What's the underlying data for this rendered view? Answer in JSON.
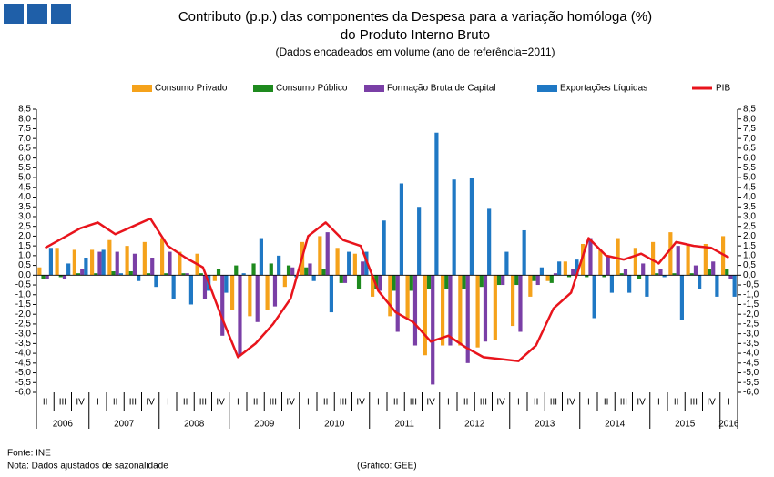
{
  "chart_data": {
    "type": "bar_line",
    "title": "Contributo (p.p.) das componentes da Despesa para a variação homóloga (%)",
    "title_line2": "do Produto Interno Bruto",
    "subtitle": "(Dados encadeados em volume (ano de referência=2011)",
    "source": "Fonte:  INE",
    "note": "Nota:  Dados ajustados de sazonalidade",
    "credit": "(Gráfico:  GEE)",
    "groups": [
      {
        "year": "2006",
        "quarters": [
          "II",
          "III",
          "IV"
        ]
      },
      {
        "year": "2007",
        "quarters": [
          "I",
          "II",
          "III",
          "IV"
        ]
      },
      {
        "year": "2008",
        "quarters": [
          "I",
          "II",
          "III",
          "IV"
        ]
      },
      {
        "year": "2009",
        "quarters": [
          "I",
          "II",
          "III",
          "IV"
        ]
      },
      {
        "year": "2010",
        "quarters": [
          "I",
          "II",
          "III",
          "IV"
        ]
      },
      {
        "year": "2011",
        "quarters": [
          "I",
          "II",
          "III",
          "IV"
        ]
      },
      {
        "year": "2012",
        "quarters": [
          "I",
          "II",
          "III",
          "IV"
        ]
      },
      {
        "year": "2013",
        "quarters": [
          "I",
          "II",
          "III",
          "IV"
        ]
      },
      {
        "year": "2014",
        "quarters": [
          "I",
          "II",
          "III",
          "IV"
        ]
      },
      {
        "year": "2015",
        "quarters": [
          "I",
          "II",
          "III",
          "IV"
        ]
      },
      {
        "year": "2016",
        "quarters": [
          "I"
        ]
      }
    ],
    "series": [
      {
        "name": "Consumo Privado",
        "color": "#f5a21b",
        "kind": "bar",
        "values": [
          0.4,
          1.4,
          1.3,
          1.3,
          1.8,
          1.5,
          1.7,
          1.9,
          1.2,
          1.1,
          -0.3,
          -1.8,
          -2.1,
          -1.8,
          -0.6,
          1.7,
          2.0,
          1.4,
          1.1,
          -1.1,
          -2.1,
          -2.2,
          -4.1,
          -3.6,
          -3.6,
          -3.7,
          -3.3,
          -2.6,
          -1.1,
          -0.3,
          0.7,
          1.6,
          1.3,
          1.9,
          1.4,
          1.7,
          2.2,
          1.6,
          1.6,
          2.0
        ]
      },
      {
        "name": "Consumo Público",
        "color": "#1e8a1e",
        "kind": "bar",
        "values": [
          -0.2,
          -0.1,
          0.1,
          0.1,
          0.2,
          0.2,
          0.1,
          0.1,
          0.1,
          0.1,
          0.3,
          0.5,
          0.6,
          0.6,
          0.5,
          0.4,
          0.3,
          -0.4,
          -0.7,
          -0.7,
          -0.8,
          -0.8,
          -0.7,
          -0.7,
          -0.7,
          -0.6,
          -0.5,
          -0.5,
          -0.3,
          -0.4,
          -0.1,
          -0.1,
          -0.1,
          0.1,
          -0.2,
          0.1,
          0.1,
          0.1,
          0.3,
          0.3
        ]
      },
      {
        "name": "Formação Bruta de Capital",
        "color": "#7a3fa6",
        "kind": "bar",
        "values": [
          -0.2,
          -0.2,
          0.3,
          1.2,
          1.2,
          1.1,
          0.9,
          1.2,
          0.1,
          -1.2,
          -3.1,
          -4.1,
          -2.4,
          -1.6,
          0.4,
          0.6,
          2.2,
          -0.4,
          0.7,
          -0.8,
          -2.9,
          -3.6,
          -5.6,
          -3.6,
          -4.5,
          -3.4,
          -0.5,
          -2.9,
          -0.5,
          0.1,
          0.3,
          1.9,
          1.0,
          0.3,
          0.6,
          0.3,
          1.5,
          0.5,
          0.7,
          -0.2
        ]
      },
      {
        "name": "Exportações Líquidas",
        "color": "#1f78c4",
        "kind": "bar",
        "values": [
          1.4,
          0.6,
          0.9,
          1.3,
          0.1,
          -0.3,
          -0.6,
          -1.2,
          -1.5,
          -0.8,
          -0.9,
          0.1,
          1.9,
          1.0,
          -0.1,
          -0.3,
          -1.9,
          1.2,
          1.2,
          2.8,
          4.7,
          3.5,
          7.3,
          4.9,
          5.0,
          3.4,
          1.2,
          2.3,
          0.4,
          0.7,
          0.8,
          -2.2,
          -0.9,
          -0.9,
          -1.1,
          -0.1,
          -2.3,
          -0.7,
          -1.1,
          -1.1
        ]
      },
      {
        "name": "PIB",
        "color": "#e8141c",
        "kind": "line",
        "values": [
          1.4,
          1.9,
          2.4,
          2.7,
          2.1,
          2.5,
          2.9,
          1.5,
          0.9,
          0.4,
          -2.0,
          -4.2,
          -3.5,
          -2.5,
          -1.2,
          2.0,
          2.7,
          1.8,
          1.5,
          -0.8,
          -1.9,
          -2.4,
          -3.4,
          -3.1,
          -3.7,
          -4.2,
          -4.3,
          -4.4,
          -3.6,
          -1.7,
          -0.9,
          1.9,
          1.0,
          0.8,
          1.1,
          0.6,
          1.7,
          1.5,
          1.4,
          0.9
        ]
      }
    ],
    "ylim": [
      -6,
      8.5
    ],
    "yticks": [
      {
        "value": -6,
        "label": "-6,0"
      },
      {
        "value": -5.5,
        "label": "-5,5"
      },
      {
        "value": -5,
        "label": "-5,0"
      },
      {
        "value": -4.5,
        "label": "-4,5"
      },
      {
        "value": -4,
        "label": "-4,0"
      },
      {
        "value": -3.5,
        "label": "-3,5"
      },
      {
        "value": -3,
        "label": "-3,0"
      },
      {
        "value": -2.5,
        "label": "-2,5"
      },
      {
        "value": -2,
        "label": "-2,0"
      },
      {
        "value": -1.5,
        "label": "-1,5"
      },
      {
        "value": -1,
        "label": "-1,0"
      },
      {
        "value": -0.5,
        "label": "-0,5"
      },
      {
        "value": 0,
        "label": "0,0"
      },
      {
        "value": 0.5,
        "label": "0,5"
      },
      {
        "value": 1,
        "label": "1,0"
      },
      {
        "value": 1.5,
        "label": "1,5"
      },
      {
        "value": 2,
        "label": "2,0"
      },
      {
        "value": 2.5,
        "label": "2,5"
      },
      {
        "value": 3,
        "label": "3,0"
      },
      {
        "value": 3.5,
        "label": "3,5"
      },
      {
        "value": 4,
        "label": "4,0"
      },
      {
        "value": 4.5,
        "label": "4,5"
      },
      {
        "value": 5,
        "label": "5,0"
      },
      {
        "value": 5.5,
        "label": "5,5"
      },
      {
        "value": 6,
        "label": "6,0"
      },
      {
        "value": 6.5,
        "label": "6,5"
      },
      {
        "value": 7,
        "label": "7,0"
      },
      {
        "value": 7.5,
        "label": "7,5"
      },
      {
        "value": 8,
        "label": "8,0"
      },
      {
        "value": 8.5,
        "label": "8,5"
      }
    ],
    "legend": "top"
  }
}
